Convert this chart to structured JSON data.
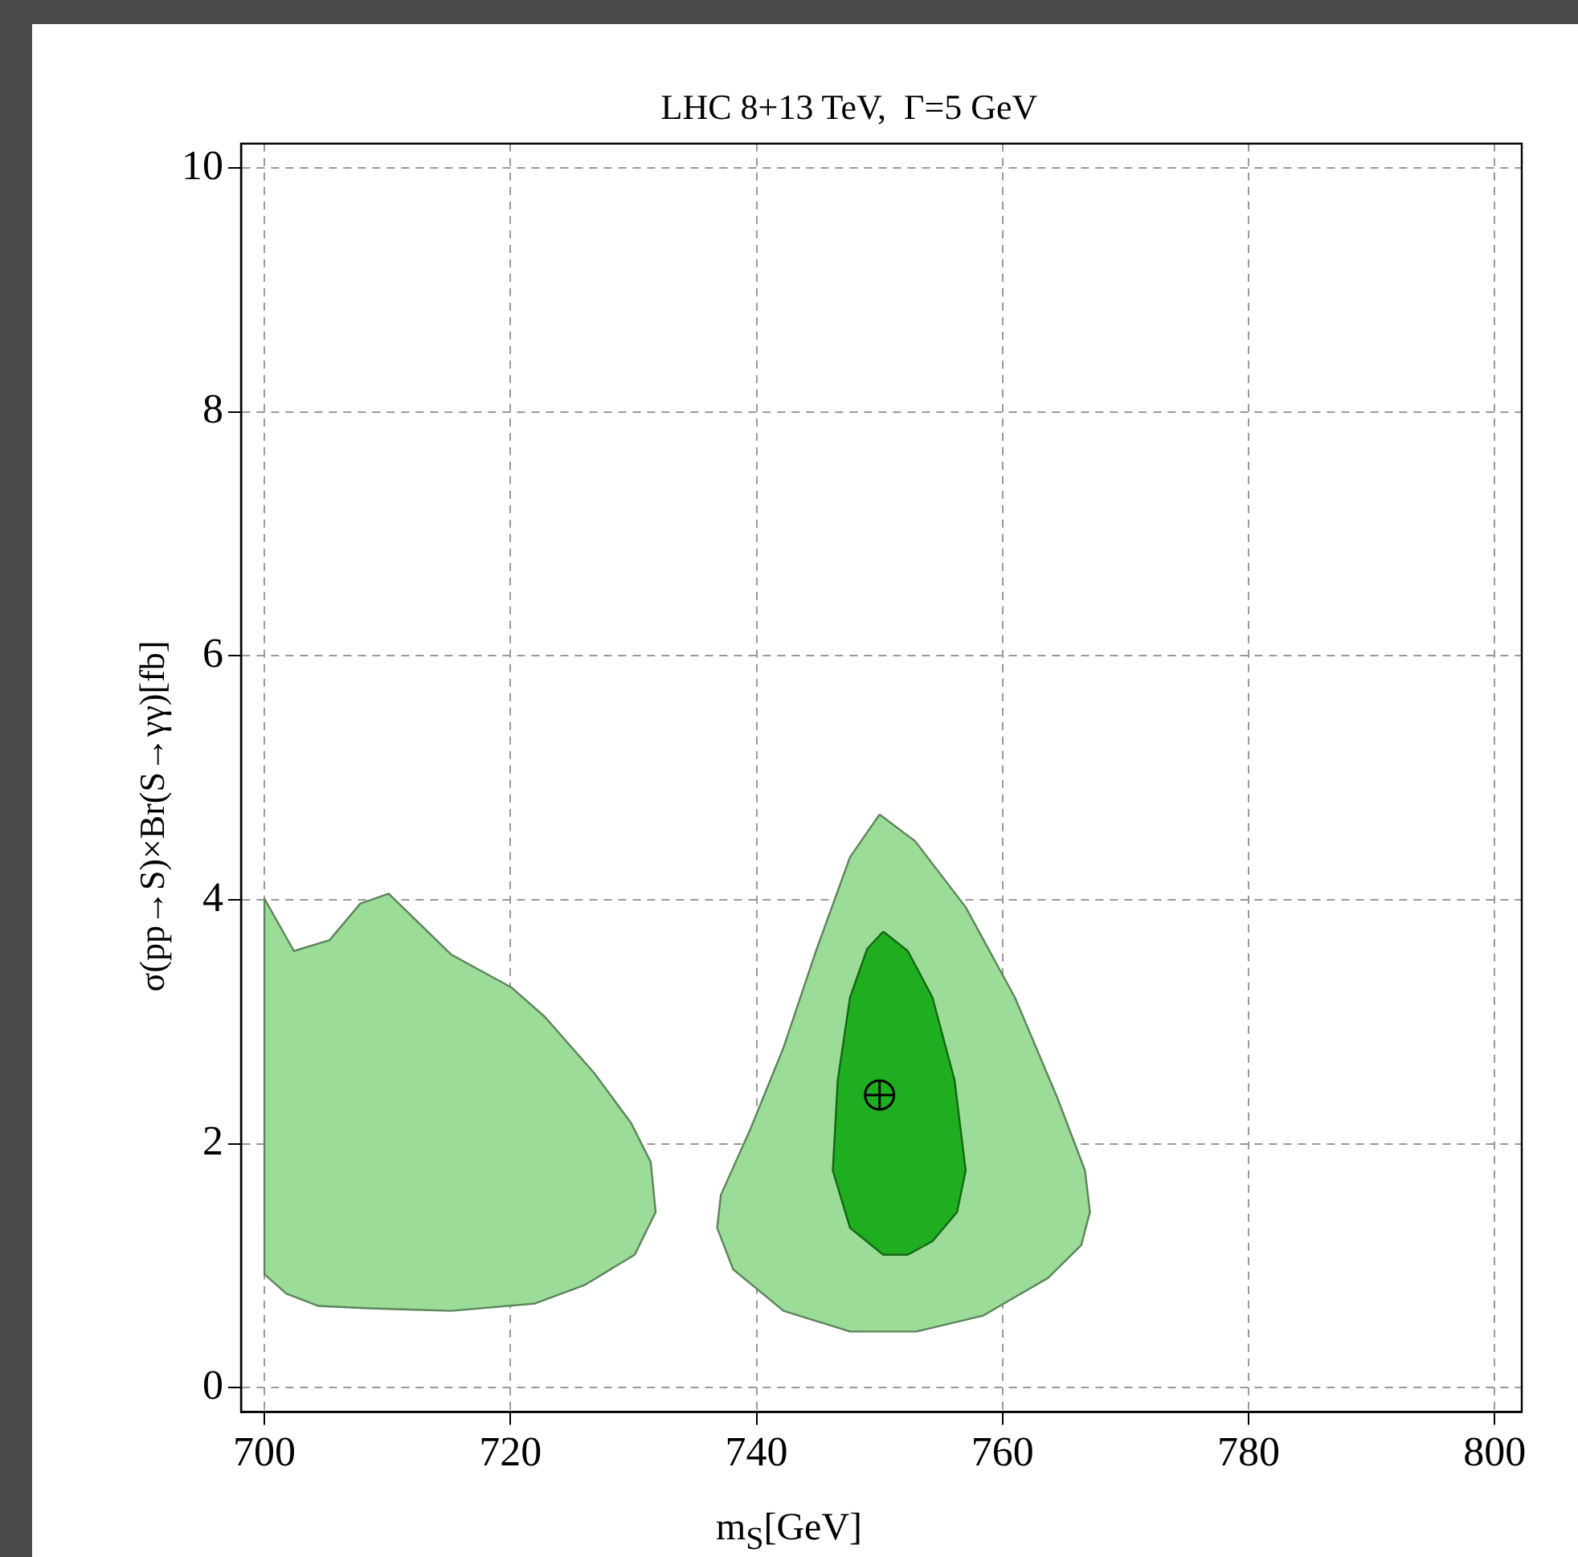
{
  "chart_data": {
    "type": "area",
    "title": "LHC 8+13 TeV,  Γ=5 GeV",
    "xlabel": "m$_{S}$[GeV]",
    "ylabel": "σ(pp→S)×Br(S→γγ)[fb]",
    "xlim": [
      698.1,
      802.2
    ],
    "ylim": [
      -0.2,
      10.2
    ],
    "xticks": [
      700,
      720,
      740,
      760,
      780,
      800
    ],
    "yticks": [
      0,
      2,
      4,
      6,
      8,
      10
    ],
    "grid": true,
    "line_style": "solid",
    "series": [
      {
        "type": "area",
        "color": "#9bdc98",
        "x": [
          700,
          702.4,
          705.3,
          707.8,
          710.1,
          715.2,
          720.1,
          722.8,
          726.8,
          729.8,
          731.4,
          731.8,
          730.1,
          726.0,
          722.0,
          715.2,
          708.5,
          704.4,
          701.8,
          700,
          700
        ],
        "values": [
          4.01,
          3.58,
          3.67,
          3.97,
          4.05,
          3.55,
          3.28,
          3.04,
          2.58,
          2.17,
          1.85,
          1.44,
          1.09,
          0.84,
          0.69,
          0.63,
          0.65,
          0.67,
          0.77,
          0.93,
          4.01
        ]
      },
      {
        "type": "area",
        "color": "#9bdc98",
        "x": [
          750,
          752.9,
          757,
          761,
          764.4,
          766.7,
          767.1,
          766.4,
          763.7,
          758.4,
          753,
          747.6,
          742.2,
          738.1,
          736.8,
          737.1,
          739.5,
          742.2,
          744.9,
          747.6,
          750
        ],
        "values": [
          4.7,
          4.48,
          3.94,
          3.2,
          2.39,
          1.78,
          1.44,
          1.17,
          0.9,
          0.59,
          0.46,
          0.46,
          0.63,
          0.97,
          1.31,
          1.58,
          2.12,
          2.79,
          3.6,
          4.35,
          4.7
        ]
      },
      {
        "type": "area",
        "color": "#1fae1f",
        "x": [
          750.3,
          752.3,
          754.3,
          756.1,
          757,
          756.3,
          754.3,
          752.3,
          750.3,
          747.6,
          746.2,
          746.6,
          747.6,
          749,
          750.3
        ],
        "values": [
          3.74,
          3.58,
          3.2,
          2.52,
          1.78,
          1.44,
          1.2,
          1.09,
          1.09,
          1.31,
          1.78,
          2.52,
          3.2,
          3.6,
          3.74
        ]
      },
      {
        "type": "scatter",
        "color": "#000000",
        "marker": "circle",
        "x": [
          750
        ],
        "values": [
          2.4
        ]
      }
    ]
  }
}
